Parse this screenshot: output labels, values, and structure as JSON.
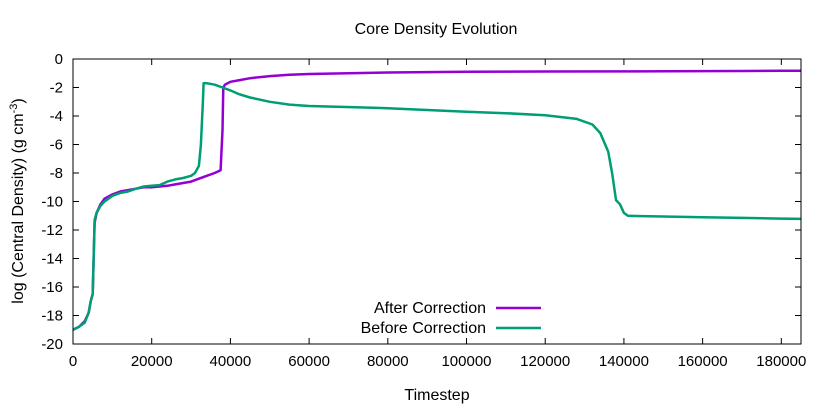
{
  "chart_data": {
    "type": "line",
    "title": "Core Density Evolution",
    "xlabel": "Timestep",
    "ylabel_main": "log (Central Density) (g cm",
    "ylabel_sup": "-3",
    "ylabel_close": ")",
    "xlim": [
      0,
      185000
    ],
    "ylim": [
      -20,
      0
    ],
    "xticks": [
      0,
      20000,
      40000,
      60000,
      80000,
      100000,
      120000,
      140000,
      160000,
      180000
    ],
    "xtick_labels": [
      "0",
      "20000",
      "40000",
      "60000",
      "80000",
      "100000",
      "120000",
      "140000",
      "160000",
      "180000"
    ],
    "yticks": [
      0,
      -2,
      -4,
      -6,
      -8,
      -10,
      -12,
      -14,
      -16,
      -18,
      -20
    ],
    "ytick_labels": [
      "0",
      "-2",
      "-4",
      "-6",
      "-8",
      "-10",
      "-12",
      "-14",
      "-16",
      "-18",
      "-20"
    ],
    "legend_position": "bottom-center",
    "series": [
      {
        "name": "After Correction",
        "color": "#9400d3",
        "x": [
          0,
          1500,
          3000,
          4000,
          4500,
          5000,
          5500,
          6000,
          7000,
          8000,
          10000,
          12000,
          14000,
          16000,
          18000,
          20000,
          22000,
          24000,
          26000,
          28000,
          30000,
          32000,
          34000,
          36000,
          37500,
          38000,
          38200,
          38600,
          40000,
          42000,
          45000,
          50000,
          55000,
          60000,
          70000,
          80000,
          90000,
          100000,
          120000,
          140000,
          160000,
          170000,
          180000,
          185000
        ],
        "y": [
          -19.0,
          -18.8,
          -18.4,
          -17.8,
          -17.0,
          -16.5,
          -11.5,
          -10.8,
          -10.2,
          -9.8,
          -9.5,
          -9.3,
          -9.2,
          -9.1,
          -9.0,
          -9.0,
          -8.95,
          -8.9,
          -8.8,
          -8.7,
          -8.6,
          -8.4,
          -8.2,
          -8.0,
          -7.8,
          -5.0,
          -2.0,
          -1.8,
          -1.6,
          -1.5,
          -1.35,
          -1.2,
          -1.1,
          -1.05,
          -1.0,
          -0.95,
          -0.92,
          -0.9,
          -0.88,
          -0.87,
          -0.85,
          -0.84,
          -0.83,
          -0.82
        ]
      },
      {
        "name": "Before Correction",
        "color": "#009e73",
        "x": [
          0,
          1500,
          3000,
          4000,
          4500,
          5000,
          5500,
          6000,
          7000,
          8000,
          10000,
          12000,
          14000,
          16000,
          18000,
          20000,
          22000,
          24000,
          26000,
          28000,
          30000,
          31000,
          32000,
          32500,
          33000,
          33200,
          34000,
          36000,
          38000,
          40000,
          42000,
          45000,
          50000,
          55000,
          60000,
          80000,
          100000,
          110000,
          120000,
          128000,
          132000,
          134000,
          136000,
          137000,
          138000,
          139000,
          140000,
          141000,
          150000,
          160000,
          170000,
          180000,
          185000
        ],
        "y": [
          -19.0,
          -18.8,
          -18.5,
          -17.8,
          -17.0,
          -16.5,
          -11.3,
          -10.8,
          -10.3,
          -10.0,
          -9.6,
          -9.4,
          -9.3,
          -9.1,
          -8.95,
          -8.9,
          -8.85,
          -8.6,
          -8.45,
          -8.35,
          -8.2,
          -8.0,
          -7.5,
          -6.0,
          -3.0,
          -1.7,
          -1.7,
          -1.8,
          -2.0,
          -2.2,
          -2.45,
          -2.7,
          -3.0,
          -3.2,
          -3.3,
          -3.45,
          -3.7,
          -3.8,
          -3.95,
          -4.2,
          -4.6,
          -5.2,
          -6.5,
          -8.0,
          -9.9,
          -10.2,
          -10.8,
          -11.0,
          -11.05,
          -11.1,
          -11.15,
          -11.2,
          -11.22
        ]
      }
    ]
  }
}
